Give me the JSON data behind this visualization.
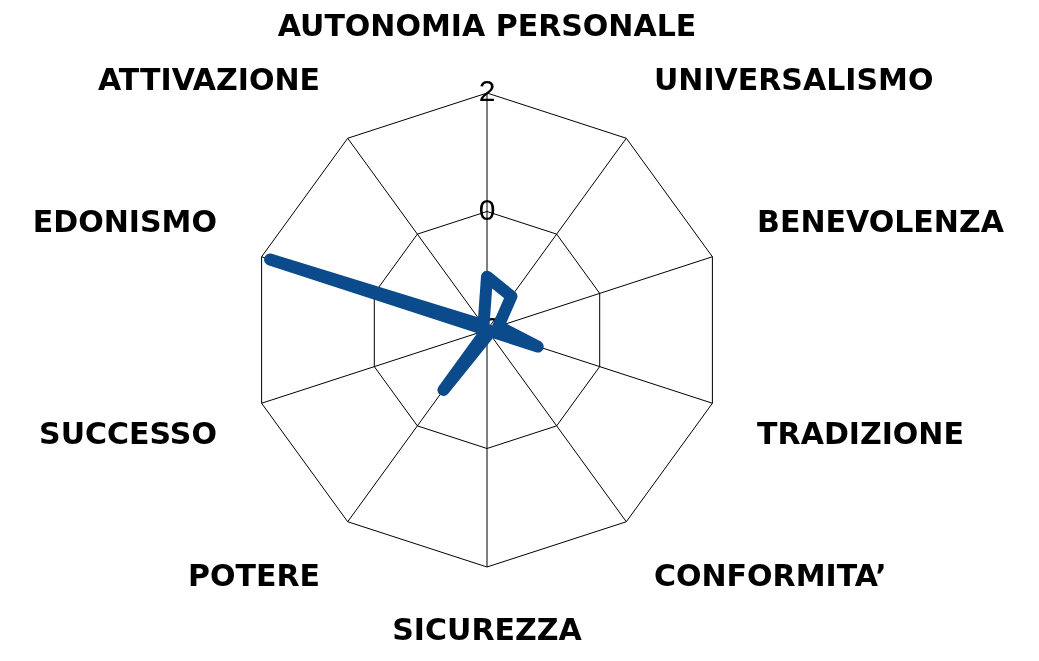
{
  "chart_data": {
    "type": "radar",
    "categories": [
      "AUTONOMIA PERSONALE",
      "UNIVERSALISMO",
      "BENEVOLENZA",
      "TRADIZIONE",
      "CONFORMITA’",
      "SICUREZZA",
      "POTERE",
      "SUCCESSO",
      "EDONISMO",
      "ATTIVAZIONE"
    ],
    "series": [
      {
        "color": "#0b4a8b",
        "values": [
          -1.1,
          -1.3,
          -1.8,
          -1.1,
          -2,
          -1.9,
          -0.75,
          -2,
          1.85,
          -1.9
        ]
      }
    ],
    "ylim": [
      -2,
      2
    ],
    "yticks": [
      -2,
      0,
      2
    ],
    "grid": true,
    "legend": false,
    "marker": "none",
    "line_style": "solid"
  }
}
